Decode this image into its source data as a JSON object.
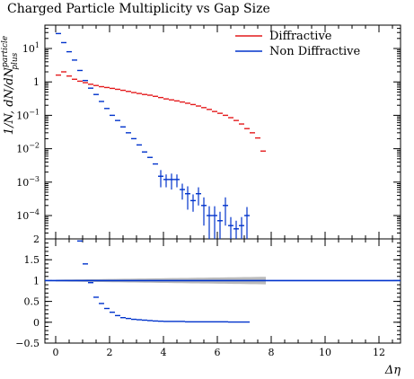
{
  "title": "Charged Particle Multiplicity vs Gap Size",
  "chart_data": [
    {
      "type": "scatter",
      "panel": "main",
      "title": "Charged Particle Multiplicity vs Gap Size",
      "ylabel_main": "1/N, dN/dN",
      "ylabel_sup": "particle",
      "ylabel_sub": "plus",
      "yscale": "log",
      "ylim": [
        2e-05,
        50
      ],
      "xlim": [
        -0.4,
        12.8
      ],
      "ytick_labels": [
        {
          "value": 10,
          "label": "10^1"
        },
        {
          "value": 1,
          "label": "1"
        },
        {
          "value": 0.1,
          "label": "10^-1"
        },
        {
          "value": 0.01,
          "label": "10^-2"
        },
        {
          "value": 0.001,
          "label": "10^-3"
        },
        {
          "value": 0.0001,
          "label": "10^-4"
        }
      ],
      "legend_position": "top-right",
      "series": [
        {
          "name": "Diffractive",
          "color": "#e41a1c",
          "x": [
            0.1,
            0.3,
            0.5,
            0.7,
            0.9,
            1.1,
            1.3,
            1.5,
            1.7,
            1.9,
            2.1,
            2.3,
            2.5,
            2.7,
            2.9,
            3.1,
            3.3,
            3.5,
            3.7,
            3.9,
            4.1,
            4.3,
            4.5,
            4.7,
            4.9,
            5.1,
            5.3,
            5.5,
            5.7,
            5.9,
            6.1,
            6.3,
            6.5,
            6.7,
            6.9,
            7.1,
            7.3,
            7.5,
            7.7
          ],
          "y": [
            1.6,
            2.0,
            1.5,
            1.2,
            1.05,
            0.95,
            0.85,
            0.78,
            0.72,
            0.68,
            0.64,
            0.6,
            0.56,
            0.52,
            0.48,
            0.45,
            0.42,
            0.4,
            0.37,
            0.34,
            0.31,
            0.29,
            0.27,
            0.25,
            0.23,
            0.21,
            0.19,
            0.17,
            0.15,
            0.13,
            0.115,
            0.1,
            0.085,
            0.07,
            0.055,
            0.04,
            0.03,
            0.021,
            0.0085
          ]
        },
        {
          "name": "Non Diffractive",
          "color": "#0033cc",
          "x": [
            0.1,
            0.3,
            0.5,
            0.7,
            0.9,
            1.1,
            1.3,
            1.5,
            1.7,
            1.9,
            2.1,
            2.3,
            2.5,
            2.7,
            2.9,
            3.1,
            3.3,
            3.5,
            3.7,
            3.9,
            4.1,
            4.3,
            4.5,
            4.7,
            4.9,
            5.1,
            5.3,
            5.5,
            5.7,
            5.9,
            6.1,
            6.3,
            6.5,
            6.7,
            6.9,
            7.1
          ],
          "y": [
            28,
            15,
            8,
            4.5,
            2.2,
            1.1,
            0.65,
            0.42,
            0.26,
            0.16,
            0.1,
            0.07,
            0.045,
            0.03,
            0.02,
            0.013,
            0.008,
            0.0055,
            0.0035,
            0.0015,
            0.0012,
            0.0012,
            0.0012,
            0.0006,
            0.00045,
            0.00028,
            0.00045,
            0.0002,
            0.0001,
            0.0001,
            7e-05,
            0.0002,
            5e-05,
            4e-05,
            5e-05,
            0.0001
          ],
          "yerr": [
            0,
            0,
            0,
            0,
            0,
            0,
            0,
            0,
            0,
            0,
            0,
            0,
            0,
            0,
            0,
            0,
            0,
            0,
            0,
            0.0008,
            0.0005,
            0.0006,
            0.0005,
            0.0003,
            0.0003,
            0.00015,
            0.00025,
            0.00015,
            9e-05,
            9e-05,
            6e-05,
            0.00015,
            4e-05,
            3e-05,
            4e-05,
            8e-05
          ]
        }
      ]
    },
    {
      "type": "scatter",
      "panel": "ratio",
      "xlabel": "Δη",
      "xlim": [
        -0.4,
        12.8
      ],
      "ylim": [
        -0.5,
        2
      ],
      "xticks": [
        0,
        2,
        4,
        6,
        8,
        10,
        12
      ],
      "yticks": [
        -0.5,
        0,
        0.5,
        1,
        1.5,
        2
      ],
      "ytick_labels": [
        "-0.5",
        "0",
        "0.5",
        "1",
        "1.5",
        "2"
      ],
      "reference_line": 1,
      "band": {
        "x_from": 0,
        "x_to": 7.8,
        "halfwidth_min": 0.02,
        "halfwidth_max": 0.09,
        "color": "#bbbbbb"
      },
      "series": [
        {
          "name": "",
          "color": "#0033cc",
          "x": [
            0.9,
            1.1,
            1.3,
            1.5,
            1.7,
            1.9,
            2.1,
            2.3,
            2.5,
            2.7,
            2.9,
            3.1,
            3.3,
            3.5,
            3.7,
            3.9,
            4.1,
            4.3,
            4.5,
            4.7,
            4.9,
            5.1,
            5.3,
            5.5,
            5.7,
            5.9,
            6.1,
            6.3,
            6.5,
            6.7,
            6.9,
            7.1
          ],
          "y": [
            1.95,
            1.4,
            0.95,
            0.6,
            0.45,
            0.33,
            0.24,
            0.16,
            0.11,
            0.09,
            0.07,
            0.06,
            0.05,
            0.04,
            0.03,
            0.025,
            0.02,
            0.02,
            0.02,
            0.02,
            0.01,
            0.01,
            0.01,
            0.01,
            0.01,
            0.01,
            0.01,
            0.01,
            0.005,
            0.005,
            0.005,
            0.005
          ]
        }
      ]
    }
  ]
}
